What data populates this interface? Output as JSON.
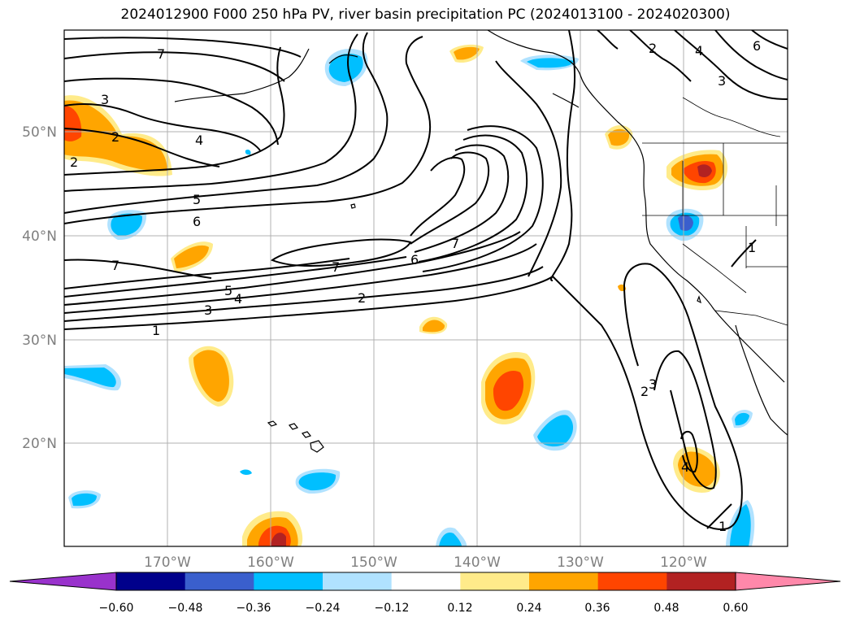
{
  "title": "2024012900 F000 250 hPa PV, river basin precipitation PC (2024013100 - 2024020300)",
  "map": {
    "lon_labels": [
      "170°W",
      "160°W",
      "150°W",
      "140°W",
      "130°W",
      "120°W"
    ],
    "lat_labels": [
      "50°N",
      "40°N",
      "30°N",
      "20°N"
    ],
    "gridlines": true,
    "pv_contour_labels": [
      "7",
      "3",
      "2",
      "2",
      "4",
      "5",
      "6",
      "7",
      "5",
      "4",
      "3",
      "1",
      "7",
      "7",
      "6",
      "2",
      "2",
      "4",
      "3",
      "6",
      "1",
      "3",
      "2",
      "4",
      "1"
    ]
  },
  "colorbar": {
    "ticks": [
      "−0.60",
      "−0.48",
      "−0.36",
      "−0.24",
      "−0.12",
      "0.12",
      "0.24",
      "0.36",
      "0.48",
      "0.60"
    ],
    "colors": [
      "#9932cc",
      "#00008b",
      "#3a5fcd",
      "#00bfff",
      "#b0e2ff",
      "#ffffff",
      "#ffeb8a",
      "#ffa500",
      "#ff4500",
      "#b22222",
      "#ff88aa"
    ],
    "extend": "both"
  }
}
